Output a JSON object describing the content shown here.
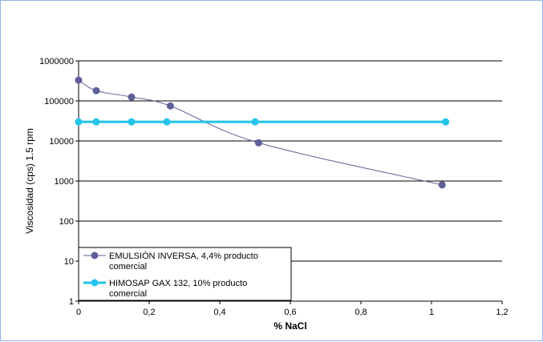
{
  "chart_data": {
    "type": "line",
    "title": "",
    "xlabel": "% NaCl",
    "ylabel": "Viscosidad (cps) 1.5 rpm",
    "xlim": [
      0,
      1.2
    ],
    "ylim": [
      1,
      1000000
    ],
    "y_scale": "log",
    "x_ticks": [
      "0",
      "0,2",
      "0,4",
      "0,6",
      "0,8",
      "1",
      "1,2"
    ],
    "y_ticks": [
      "1",
      "10",
      "100",
      "1000",
      "10000",
      "100000",
      "1000000"
    ],
    "grid": "horizontal",
    "legend_position": "bottom-left",
    "series": [
      {
        "name_lines": [
          "EMULSIÓN INVERSA, 4,4% producto",
          "comercial"
        ],
        "color": "#5f5f99",
        "marker": "circle",
        "x": [
          0,
          0.05,
          0.15,
          0.26,
          0.51,
          1.03
        ],
        "y": [
          330000,
          180000,
          125000,
          75000,
          9000,
          800
        ]
      },
      {
        "name_lines": [
          "HIMOSAP GAX 132, 10% producto",
          "comercial"
        ],
        "color": "#22c4e8",
        "marker": "circle",
        "x": [
          0,
          0.05,
          0.15,
          0.25,
          0.5,
          1.04
        ],
        "y": [
          30000,
          30000,
          30000,
          30000,
          30000,
          30000
        ]
      }
    ]
  }
}
